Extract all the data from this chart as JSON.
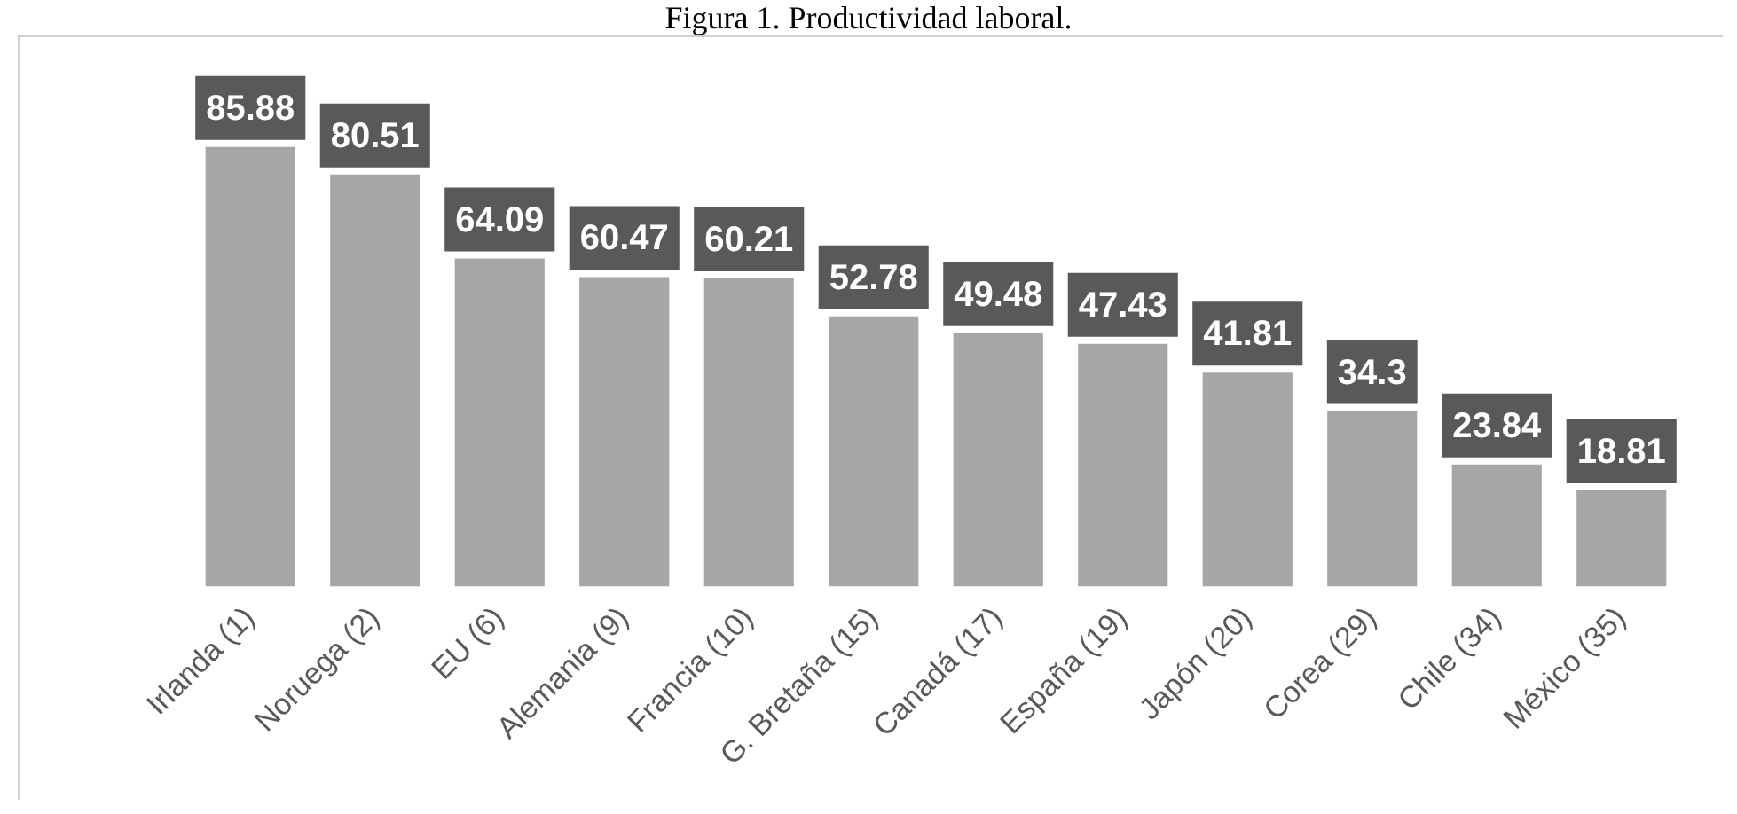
{
  "chart_data": {
    "type": "bar",
    "title": "Figura 1. Productividad laboral.",
    "categories": [
      "Irlanda (1)",
      "Noruega (2)",
      "EU (6)",
      "Alemania (9)",
      "Francia (10)",
      "G. Bretaña (15)",
      "Canadá (17)",
      "España (19)",
      "Japón (20)",
      "Corea (29)",
      "Chile (34)",
      "México (35)"
    ],
    "values": [
      85.88,
      80.51,
      64.09,
      60.47,
      60.21,
      52.78,
      49.48,
      47.43,
      41.81,
      34.3,
      23.84,
      18.81
    ],
    "color": "#a6a6a6",
    "data_labels": true,
    "grid": false,
    "legend": false
  }
}
